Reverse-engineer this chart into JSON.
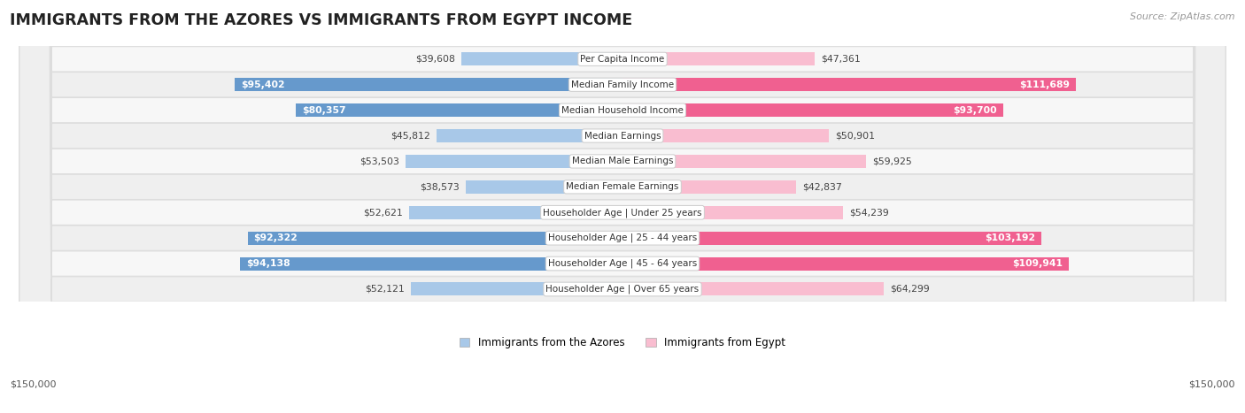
{
  "title": "IMMIGRANTS FROM THE AZORES VS IMMIGRANTS FROM EGYPT INCOME",
  "source": "Source: ZipAtlas.com",
  "categories": [
    "Per Capita Income",
    "Median Family Income",
    "Median Household Income",
    "Median Earnings",
    "Median Male Earnings",
    "Median Female Earnings",
    "Householder Age | Under 25 years",
    "Householder Age | 25 - 44 years",
    "Householder Age | 45 - 64 years",
    "Householder Age | Over 65 years"
  ],
  "azores_values": [
    39608,
    95402,
    80357,
    45812,
    53503,
    38573,
    52621,
    92322,
    94138,
    52121
  ],
  "egypt_values": [
    47361,
    111689,
    93700,
    50901,
    59925,
    42837,
    54239,
    103192,
    109941,
    64299
  ],
  "azores_labels": [
    "$39,608",
    "$95,402",
    "$80,357",
    "$45,812",
    "$53,503",
    "$38,573",
    "$52,621",
    "$92,322",
    "$94,138",
    "$52,121"
  ],
  "egypt_labels": [
    "$47,361",
    "$111,689",
    "$93,700",
    "$50,901",
    "$59,925",
    "$42,837",
    "$54,239",
    "$103,192",
    "$109,941",
    "$64,299"
  ],
  "azores_color_light": "#a8c8e8",
  "azores_color_dark": "#6699cc",
  "egypt_color_light": "#f9bdd0",
  "egypt_color_dark": "#f06090",
  "max_val": 150000,
  "bar_height": 0.52,
  "legend_azores": "Immigrants from the Azores",
  "legend_egypt": "Immigrants from Egypt",
  "axis_label_left": "$150,000",
  "axis_label_right": "$150,000",
  "inside_threshold": 65000
}
